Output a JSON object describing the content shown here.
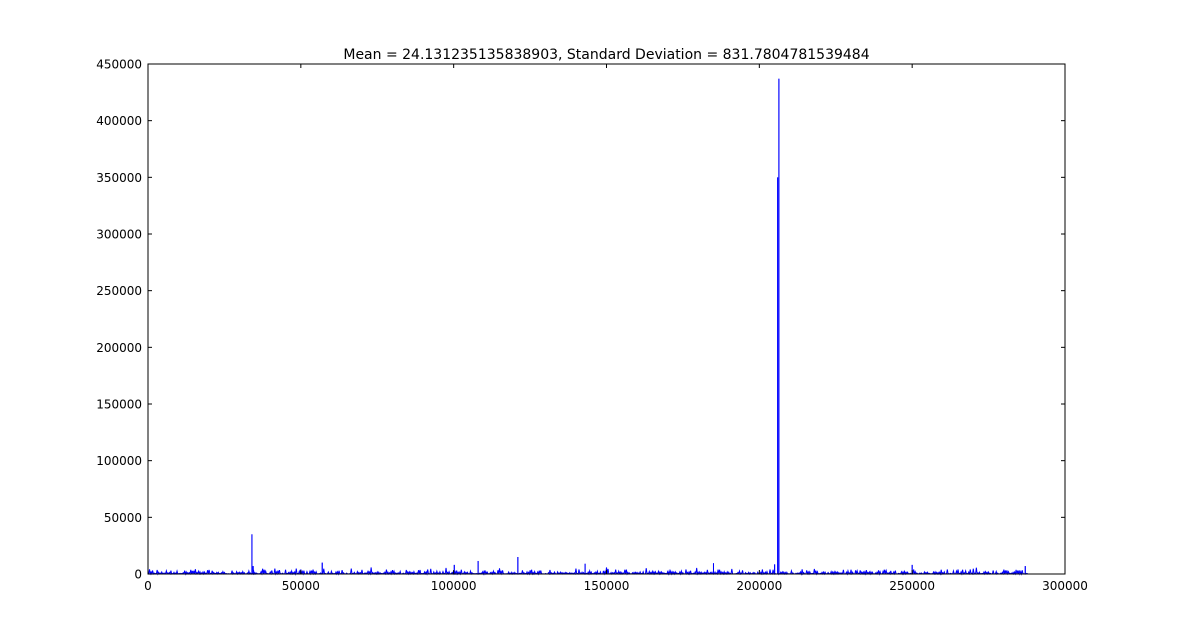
{
  "chart_data": {
    "type": "line",
    "title": "Mean = 24.131235135838903, Standard Deviation = 831.7804781539484",
    "xlabel": "",
    "ylabel": "",
    "xlim": [
      0,
      300000
    ],
    "ylim": [
      0,
      450000
    ],
    "x_ticks": [
      0,
      50000,
      100000,
      150000,
      200000,
      250000,
      300000
    ],
    "x_tick_labels": [
      "0",
      "50000",
      "100000",
      "150000",
      "200000",
      "250000",
      "300000"
    ],
    "y_ticks": [
      0,
      50000,
      100000,
      150000,
      200000,
      250000,
      300000,
      350000,
      400000,
      450000
    ],
    "y_tick_labels": [
      "0",
      "50000",
      "100000",
      "150000",
      "200000",
      "250000",
      "300000",
      "350000",
      "400000",
      "450000"
    ],
    "grid": false,
    "legend": "none",
    "series_color": "#0000ff",
    "noise": {
      "x_start": 0,
      "x_end": 287500,
      "step": 500,
      "typical_max": 6000
    },
    "series": [
      {
        "x": [
          34000,
          34400,
          57000,
          100200,
          108000,
          121000,
          143000,
          185000,
          205000,
          206000,
          206400,
          250000,
          287000
        ],
        "y": [
          35000,
          7000,
          10000,
          8000,
          11500,
          15000,
          9000,
          9500,
          8500,
          350000,
          437000,
          8000,
          7000
        ]
      }
    ]
  }
}
